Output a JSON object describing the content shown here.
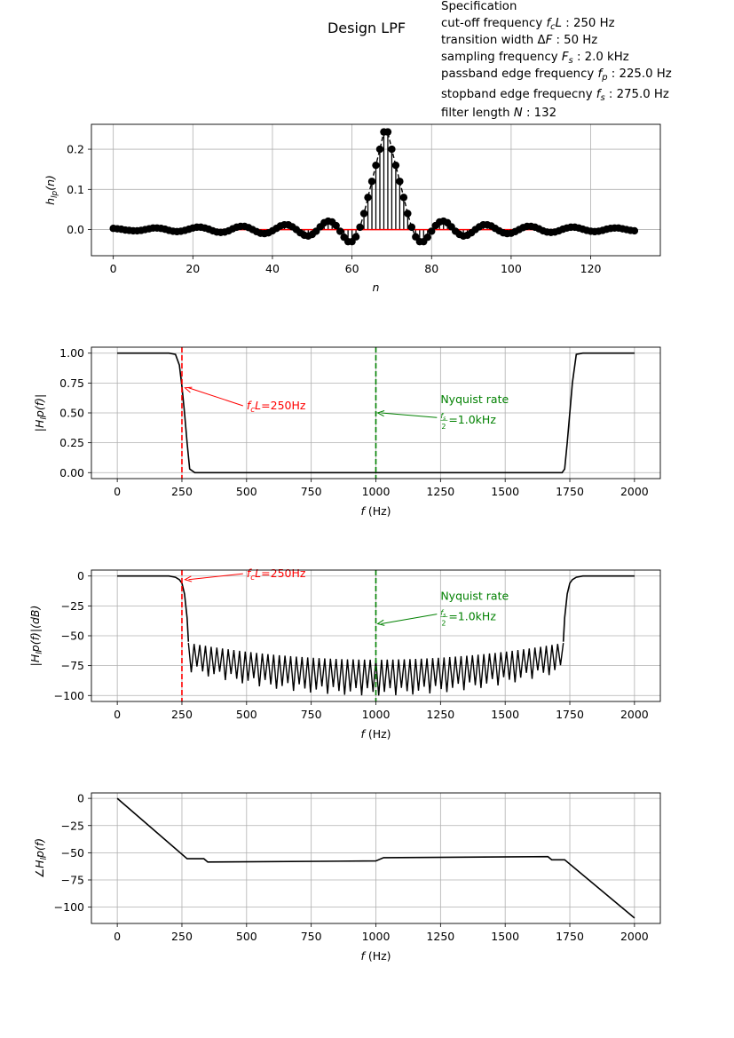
{
  "figure": {
    "title": "Design LPF",
    "spec_lines": [
      "Specification",
      "cut-off frequency fcL : 250 Hz",
      "transition width ΔF : 50 Hz",
      "sampling frequency Fs : 2.0 kHz",
      "passband edge frequency fp : 225.0 Hz",
      "stopband edge frequecny fs : 275.0 Hz",
      "filter length N : 132"
    ]
  },
  "colors": {
    "cutoff": "#ff0000",
    "nyquist": "#008000",
    "trace": "#000000",
    "grid": "#b0b0b0",
    "baseline": "#ff0000"
  },
  "chart_data": [
    {
      "type": "line",
      "kind": "stem",
      "xlabel": "n",
      "ylabel": "h_lp(n)",
      "xlim": [
        -5.5,
        137.5
      ],
      "ylim": [
        -0.065,
        0.262
      ],
      "xticks": [
        0,
        20,
        40,
        60,
        80,
        100,
        120
      ],
      "xtick_labels": [
        "0",
        "20",
        "40",
        "60",
        "80",
        "100",
        "120"
      ],
      "yticks": [
        0.0,
        0.1,
        0.2
      ],
      "ytick_labels": [
        "0.0",
        "0.1",
        "0.2"
      ],
      "grid": true,
      "series": [
        {
          "x": "0..131",
          "values": [
            0.003,
            0.002,
            0.001,
            -0.001,
            -0.002,
            -0.003,
            -0.003,
            -0.002,
            0.0,
            0.002,
            0.004,
            0.004,
            0.003,
            0.001,
            -0.002,
            -0.004,
            -0.005,
            -0.004,
            -0.002,
            0.001,
            0.004,
            0.006,
            0.006,
            0.004,
            0.001,
            -0.003,
            -0.006,
            -0.007,
            -0.006,
            -0.003,
            0.002,
            0.006,
            0.008,
            0.008,
            0.005,
            0.0,
            -0.005,
            -0.009,
            -0.01,
            -0.008,
            -0.003,
            0.003,
            0.009,
            0.012,
            0.012,
            0.007,
            0.0,
            -0.008,
            -0.014,
            -0.016,
            -0.012,
            -0.004,
            0.007,
            0.017,
            0.021,
            0.019,
            0.01,
            -0.004,
            -0.019,
            -0.03,
            -0.03,
            -0.018,
            0.006,
            0.04,
            0.08,
            0.12,
            0.16,
            0.2,
            0.243,
            0.243,
            0.2,
            0.16,
            0.12,
            0.08,
            0.04,
            0.006,
            -0.018,
            -0.03,
            -0.03,
            -0.019,
            -0.004,
            0.01,
            0.019,
            0.021,
            0.017,
            0.007,
            -0.004,
            -0.012,
            -0.016,
            -0.014,
            -0.008,
            0.0,
            0.007,
            0.012,
            0.012,
            0.009,
            0.003,
            -0.003,
            -0.008,
            -0.01,
            -0.009,
            -0.005,
            0.0,
            0.005,
            0.008,
            0.008,
            0.006,
            0.002,
            -0.003,
            -0.006,
            -0.007,
            -0.006,
            -0.003,
            0.001,
            0.004,
            0.006,
            0.006,
            0.004,
            0.001,
            -0.002,
            -0.004,
            -0.005,
            -0.004,
            -0.002,
            0.001,
            0.003,
            0.004,
            0.004,
            0.002,
            0.0,
            -0.002,
            -0.003
          ]
        }
      ]
    },
    {
      "type": "line",
      "xlabel": "f (Hz)",
      "ylabel": "|H_lp(f)|",
      "xlim": [
        -100,
        2100
      ],
      "ylim": [
        -0.05,
        1.05
      ],
      "xticks": [
        0,
        250,
        500,
        750,
        1000,
        1250,
        1500,
        1750,
        2000
      ],
      "xtick_labels": [
        "0",
        "250",
        "500",
        "750",
        "1000",
        "1250",
        "1500",
        "1750",
        "2000"
      ],
      "yticks": [
        0.0,
        0.25,
        0.5,
        0.75,
        1.0
      ],
      "ytick_labels": [
        "0.00",
        "0.25",
        "0.50",
        "0.75",
        "1.00"
      ],
      "grid": true,
      "series": [
        {
          "x": [
            0,
            200,
            225,
            240,
            250,
            260,
            270,
            280,
            300,
            1700,
            1720,
            1730,
            1740,
            1750,
            1760,
            1775,
            1800,
            2000
          ],
          "values": [
            1.0,
            1.0,
            0.99,
            0.9,
            0.72,
            0.5,
            0.25,
            0.03,
            0.0,
            0.0,
            0.0,
            0.03,
            0.25,
            0.5,
            0.75,
            0.99,
            1.0,
            1.0
          ]
        }
      ],
      "vlines": [
        {
          "x": 250,
          "color": "cutoff"
        },
        {
          "x": 1000,
          "color": "nyquist"
        }
      ],
      "annotations": [
        {
          "text": "fcL=250Hz",
          "color": "cutoff",
          "point": [
            255,
            0.71
          ],
          "text_at": [
            500,
            0.53
          ]
        },
        {
          "text": "Nyquist rate",
          "text2": "fs/2=1.0kHz",
          "color": "nyquist",
          "point": [
            1000,
            0.5
          ],
          "text_at": [
            1250,
            0.58
          ]
        }
      ]
    },
    {
      "type": "line",
      "xlabel": "f (Hz)",
      "ylabel": "|H_lp(f)|(dB)",
      "xlim": [
        -100,
        2100
      ],
      "ylim": [
        -105,
        5
      ],
      "xticks": [
        0,
        250,
        500,
        750,
        1000,
        1250,
        1500,
        1750,
        2000
      ],
      "xtick_labels": [
        "0",
        "250",
        "500",
        "750",
        "1000",
        "1250",
        "1500",
        "1750",
        "2000"
      ],
      "yticks": [
        0,
        -25,
        -50,
        -75,
        -100
      ],
      "ytick_labels": [
        "0",
        "−25",
        "−50",
        "−75",
        "−100"
      ],
      "grid": true,
      "series": [
        {
          "x": [
            0,
            200,
            225,
            240,
            250,
            260,
            270,
            275,
            1725,
            1730,
            1740,
            1750,
            1760,
            1775,
            1800,
            2000
          ],
          "values": [
            0,
            0,
            -1,
            -3,
            -6,
            -15,
            -35,
            -55,
            -55,
            -35,
            -15,
            -6,
            -3,
            -1,
            0,
            0
          ],
          "stopband": {
            "from": 275,
            "to": 1725,
            "ripple_top": [
              -56,
              -70,
              -57
            ],
            "ripple_bottom": [
              -80,
              -100,
              -80
            ],
            "nulls": 66
          }
        }
      ],
      "vlines": [
        {
          "x": 250,
          "color": "cutoff"
        },
        {
          "x": 1000,
          "color": "nyquist"
        }
      ],
      "annotations": [
        {
          "text": "fcL=250Hz",
          "color": "cutoff",
          "point": [
            255,
            -3
          ],
          "text_at": [
            500,
            -1
          ]
        },
        {
          "text": "Nyquist rate",
          "text2": "fs/2=1.0kHz",
          "color": "nyquist",
          "point": [
            1000,
            -40
          ],
          "text_at": [
            1250,
            -20
          ]
        }
      ]
    },
    {
      "type": "line",
      "xlabel": "f (Hz)",
      "ylabel": "∠H_lp(f)",
      "xlim": [
        -100,
        2100
      ],
      "ylim": [
        -115,
        5
      ],
      "xticks": [
        0,
        250,
        500,
        750,
        1000,
        1250,
        1500,
        1750,
        2000
      ],
      "xtick_labels": [
        "0",
        "250",
        "500",
        "750",
        "1000",
        "1250",
        "1500",
        "1750",
        "2000"
      ],
      "yticks": [
        0,
        -25,
        -50,
        -75,
        -100
      ],
      "ytick_labels": [
        "0",
        "−25",
        "−50",
        "−75",
        "−100"
      ],
      "grid": true,
      "series": [
        {
          "x": [
            0,
            270,
            335,
            350,
            1000,
            1030,
            1665,
            1680,
            1730,
            2000
          ],
          "values": [
            0,
            -55.5,
            -55.5,
            -58.5,
            -57.5,
            -54.5,
            -53.5,
            -56.5,
            -56.5,
            -110
          ]
        }
      ]
    }
  ]
}
